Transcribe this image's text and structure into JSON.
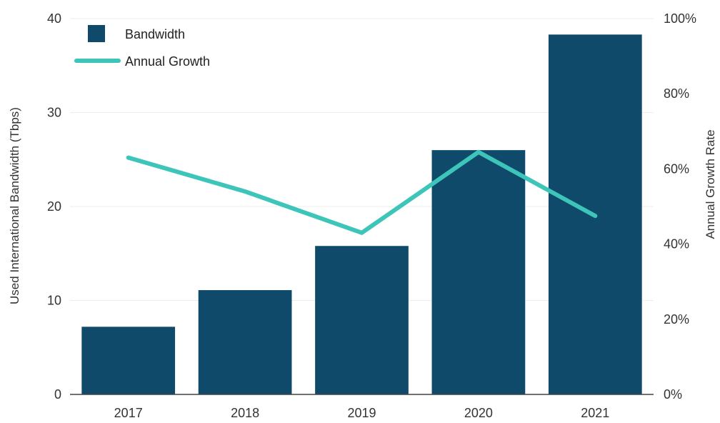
{
  "chart_data": {
    "type": "bar",
    "categories": [
      "2017",
      "2018",
      "2019",
      "2020",
      "2021"
    ],
    "series": [
      {
        "name": "Bandwidth",
        "type": "bar",
        "axis": "left",
        "values": [
          7.2,
          11.1,
          15.8,
          26.0,
          38.3
        ]
      },
      {
        "name": "Annual Growth",
        "type": "line",
        "axis": "right",
        "values": [
          0.63,
          0.54,
          0.43,
          0.645,
          0.475
        ]
      }
    ],
    "ylabel": "Used International Bandwidth (Tbps)",
    "ylabel_right": "Annual Growth Rate",
    "ylim": [
      0,
      40
    ],
    "ylim_right": [
      0,
      1
    ],
    "y_ticks": [
      "0",
      "10",
      "20",
      "30",
      "40"
    ],
    "y_ticks_right": [
      "0%",
      "20%",
      "40%",
      "60%",
      "80%",
      "100%"
    ],
    "grid": true,
    "legend": "top-left",
    "colors": {
      "bar": "#0f4a6b",
      "line": "#3cc5b8",
      "grid": "#eeeeee",
      "axis": "#444444"
    }
  }
}
